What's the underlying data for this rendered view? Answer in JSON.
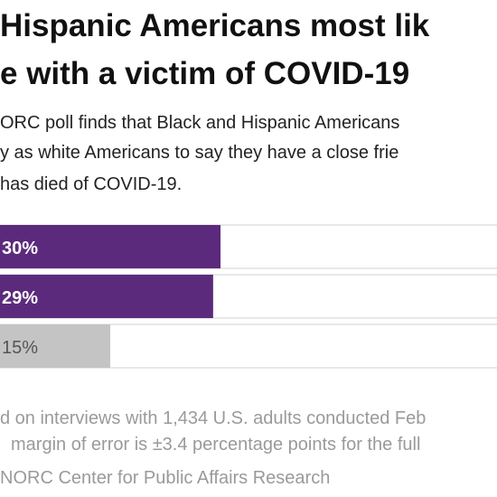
{
  "chart_data": {
    "type": "bar",
    "orientation": "horizontal",
    "title": [
      "Hispanic Americans most lik",
      "e with a victim of COVID-19"
    ],
    "subtitle": [
      "ORC poll finds that Black and Hispanic Americans",
      "y as white Americans to say they have a close frie",
      "has died of COVID-19."
    ],
    "categories": [
      null,
      null,
      null
    ],
    "values": [
      30,
      29,
      15
    ],
    "value_labels": [
      "30%",
      "29%",
      "15%"
    ],
    "colors": [
      "#5b2a7d",
      "#5b2a7d",
      "#c4c4c4"
    ],
    "label_colors": [
      "#ffffff",
      "#ffffff",
      "#555555"
    ],
    "footnote": [
      "d on interviews with 1,434 U.S. adults conducted Feb",
      "margin of error is ±3.4 percentage points for the full",
      "NORC Center for Public Affairs Research"
    ]
  }
}
